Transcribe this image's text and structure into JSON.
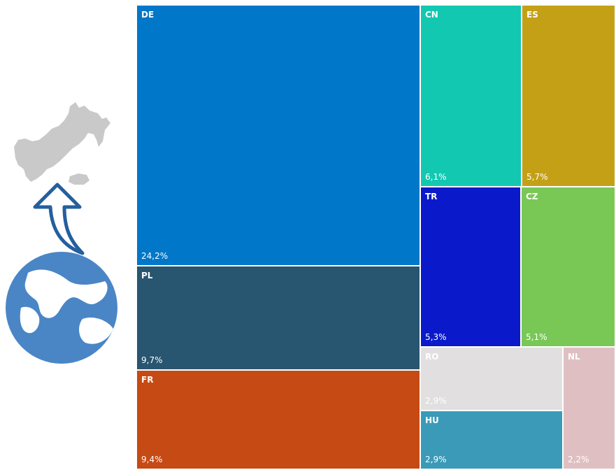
{
  "chart_data": {
    "type": "treemap",
    "title": "",
    "items": [
      {
        "code": "DE",
        "label": "24,2%",
        "value": 24.2,
        "color": "#0077C8"
      },
      {
        "code": "PL",
        "label": "9,7%",
        "value": 9.7,
        "color": "#285670"
      },
      {
        "code": "FR",
        "label": "9,4%",
        "value": 9.4,
        "color": "#C64A14"
      },
      {
        "code": "CN",
        "label": "6,1%",
        "value": 6.1,
        "color": "#12C8B1"
      },
      {
        "code": "ES",
        "label": "5,7%",
        "value": 5.7,
        "color": "#C4A016"
      },
      {
        "code": "TR",
        "label": "5,3%",
        "value": 5.3,
        "color": "#0A1ACB"
      },
      {
        "code": "CZ",
        "label": "5,1%",
        "value": 5.1,
        "color": "#79C856"
      },
      {
        "code": "RO",
        "label": "2,9%",
        "value": 2.9,
        "color": "#E1DFDF"
      },
      {
        "code": "HU",
        "label": "2,9%",
        "value": 2.9,
        "color": "#3A9AB8"
      },
      {
        "code": "NL",
        "label": "2,2%",
        "value": 2.2,
        "color": "#E0BFC2"
      }
    ]
  },
  "illustration": {
    "icons": [
      "country-silhouette-icon",
      "curved-up-arrow-icon",
      "globe-icon"
    ]
  }
}
